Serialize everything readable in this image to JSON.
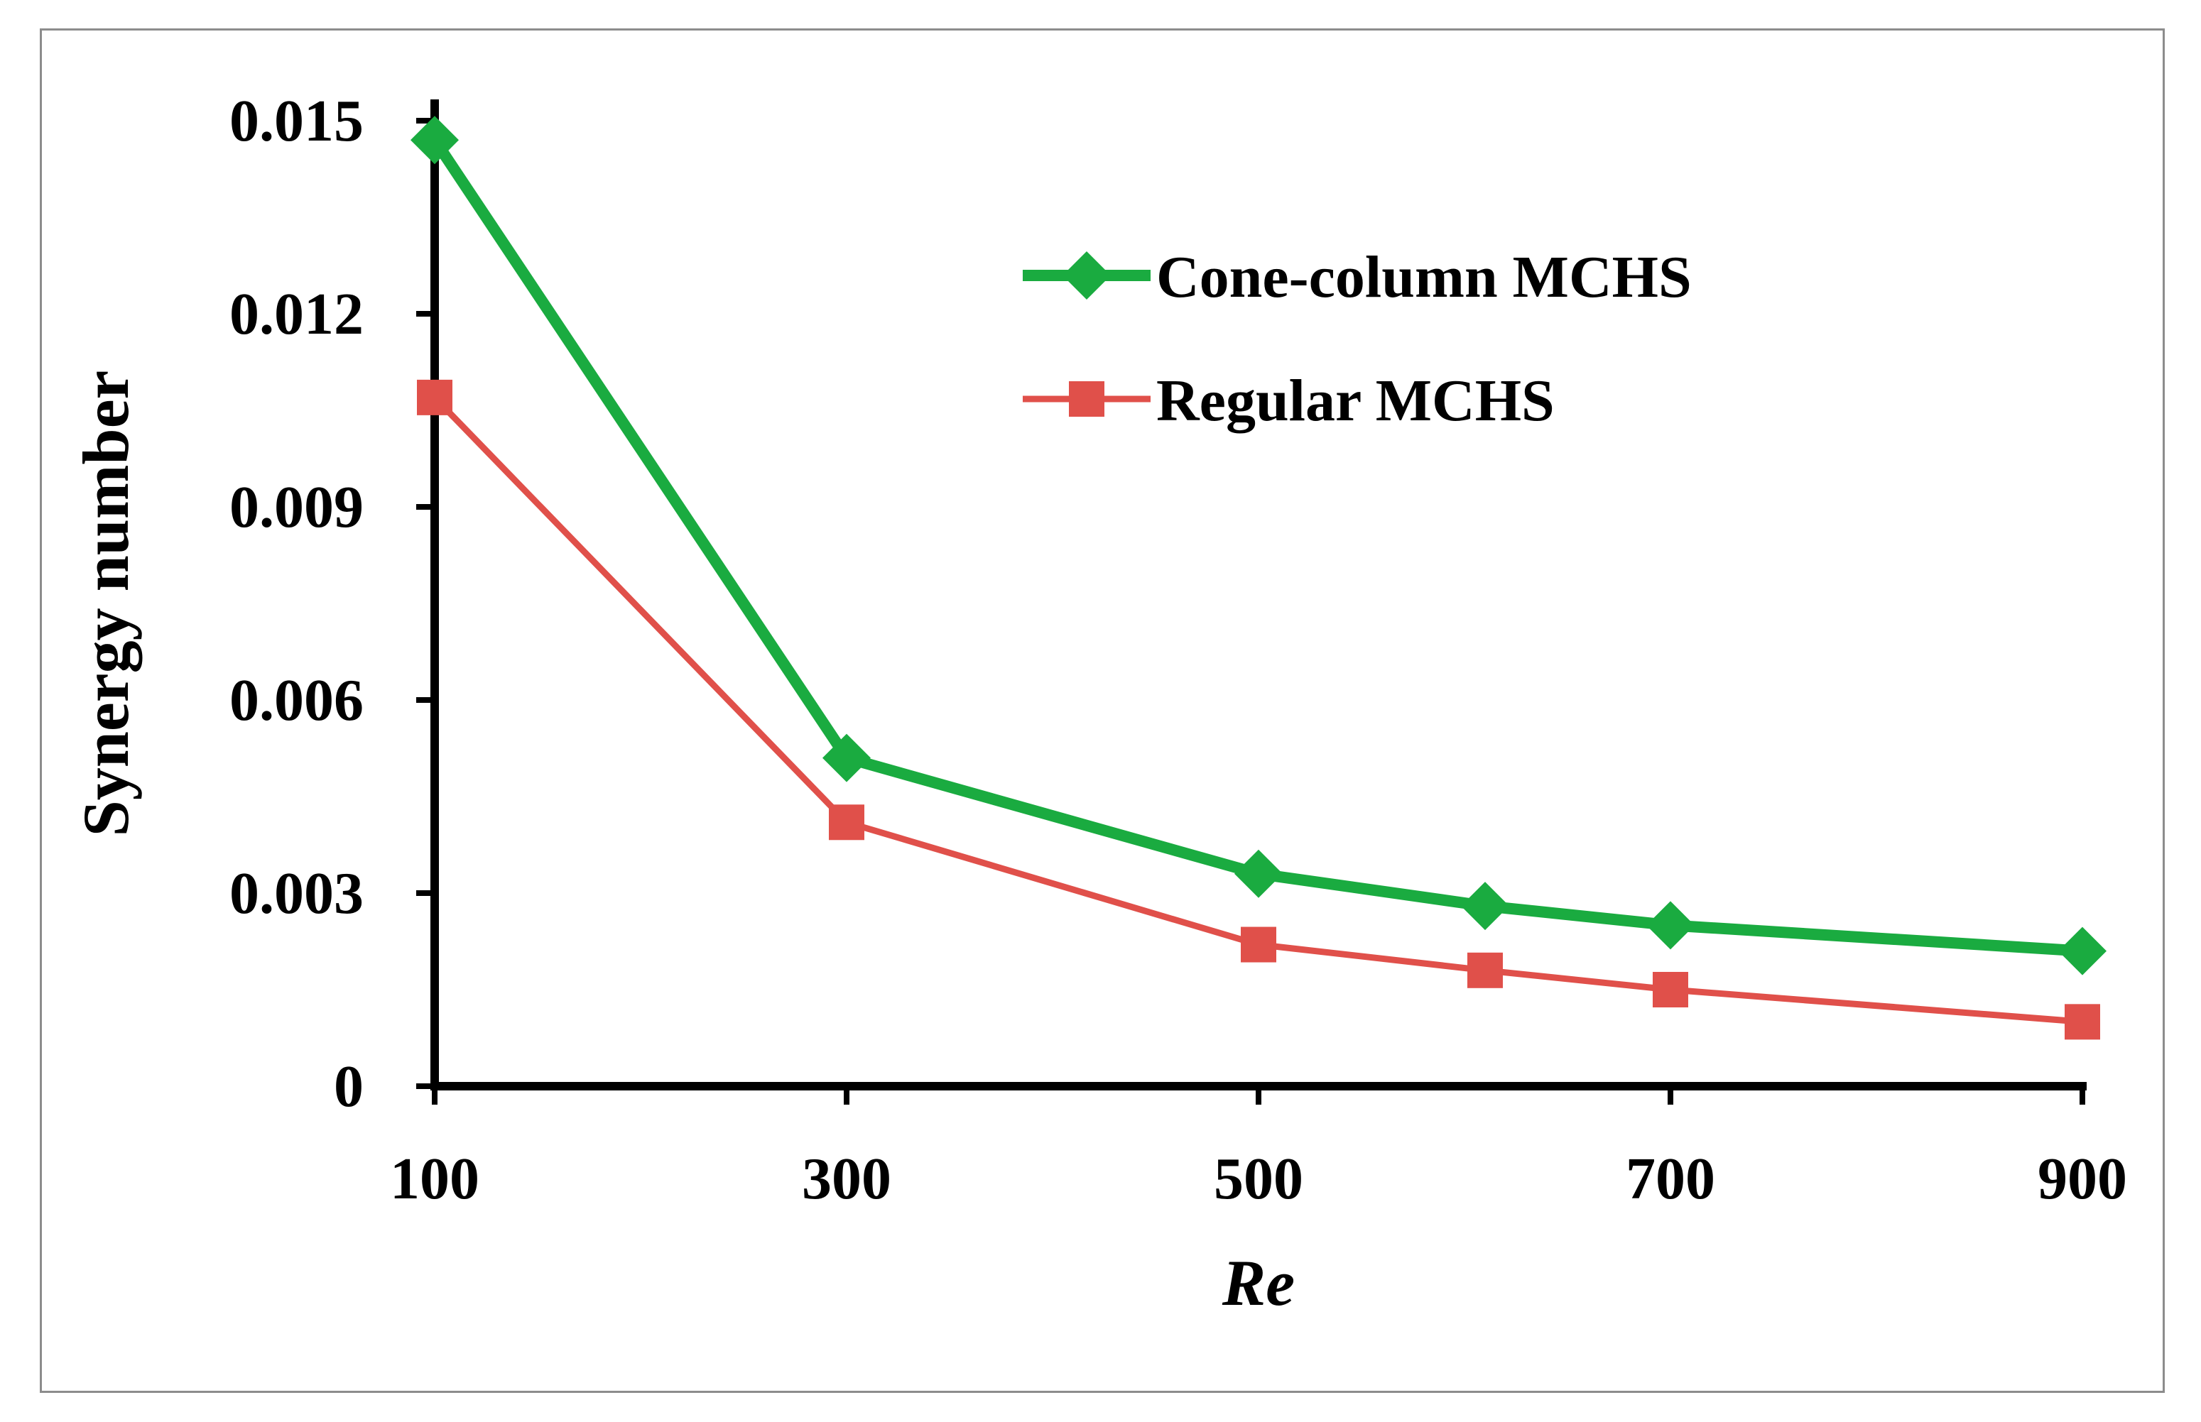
{
  "chart_data": {
    "type": "line",
    "title": "",
    "xlabel": "Re",
    "ylabel": "Synergy number",
    "x": [
      100,
      300,
      500,
      610,
      700,
      900
    ],
    "xticks": [
      "100",
      "300",
      "500",
      "700",
      "900"
    ],
    "xtick_values": [
      100,
      300,
      500,
      700,
      900
    ],
    "yticks": [
      "0",
      "0.003",
      "0.006",
      "0.009",
      "0.012",
      "0.015"
    ],
    "ytick_values": [
      0,
      0.003,
      0.006,
      0.009,
      0.012,
      0.015
    ],
    "xlim": [
      100,
      900
    ],
    "ylim": [
      0,
      0.015
    ],
    "legend_position": "top-right",
    "series": [
      {
        "name": "Cone-column MCHS",
        "color": "#1aab40",
        "marker": "diamond",
        "values": [
          0.0147,
          0.0051,
          0.0033,
          0.0028,
          0.0025,
          0.0021
        ]
      },
      {
        "name": "Regular MCHS",
        "color": "#e0504a",
        "marker": "square",
        "values": [
          0.0107,
          0.0041,
          0.0022,
          0.0018,
          0.0015,
          0.001
        ]
      }
    ]
  }
}
